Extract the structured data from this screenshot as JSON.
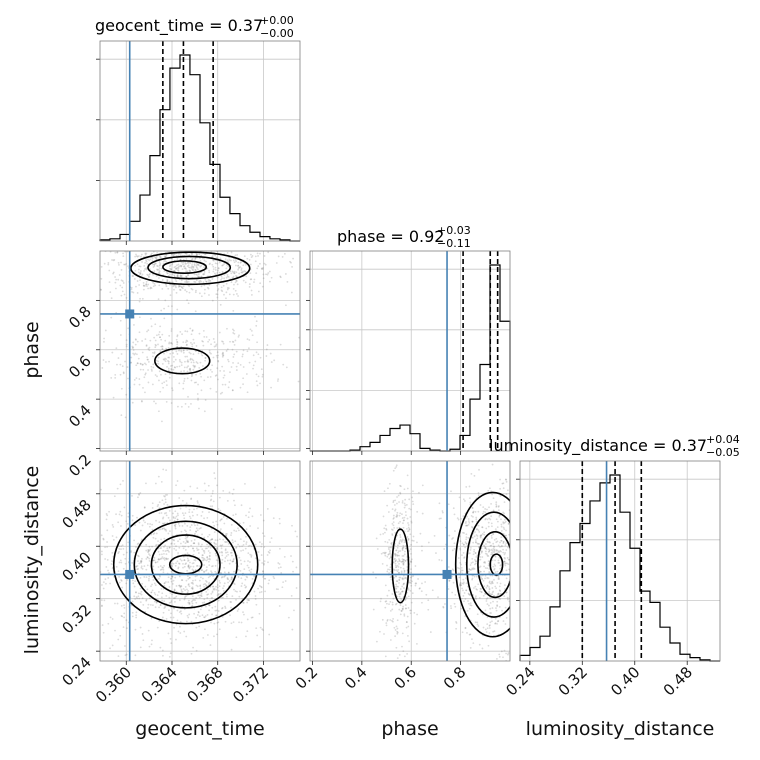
{
  "chart_data": {
    "type": "corner",
    "parameters": [
      "geocent_time",
      "phase",
      "luminosity_distance"
    ],
    "truths": {
      "geocent_time": 0.3603,
      "phase": 0.745,
      "luminosity_distance": 0.357
    },
    "titles": [
      {
        "text": "geocent_time = 0.37",
        "sup": "+0.00",
        "sub": "−0.00"
      },
      {
        "text": "phase = 0.92",
        "sup": "+0.03",
        "sub": "−0.11"
      },
      {
        "text": "luminosity_distance = 0.37",
        "sup": "+0.04",
        "sub": "−0.05"
      }
    ],
    "ranges": {
      "geocent_time": [
        0.3577,
        0.3752
      ],
      "phase": [
        0.19,
        1.0
      ],
      "luminosity_distance": [
        0.225,
        0.53
      ]
    },
    "ticks": {
      "geocent_time": {
        "values": [
          0.36,
          0.364,
          0.368,
          0.372
        ],
        "labels": [
          "0.360",
          "0.364",
          "0.368",
          "0.372"
        ]
      },
      "phase": {
        "values": [
          0.2,
          0.4,
          0.6,
          0.8
        ],
        "labels": [
          "0.2",
          "0.4",
          "0.6",
          "0.8"
        ]
      },
      "luminosity_distance": {
        "values": [
          0.24,
          0.32,
          0.4,
          0.48
        ],
        "labels": [
          "0.24",
          "0.32",
          "0.40",
          "0.48"
        ]
      }
    },
    "quantiles": {
      "geocent_time": [
        0.3632,
        0.365,
        0.3676
      ],
      "phase": [
        0.81,
        0.92,
        0.95
      ],
      "luminosity_distance": [
        0.32,
        0.37,
        0.41
      ]
    },
    "histograms": {
      "geocent_time": {
        "edges": [
          0.3577,
          0.35857,
          0.35945,
          0.36032,
          0.3612,
          0.36207,
          0.36295,
          0.36382,
          0.3647,
          0.36557,
          0.36645,
          0.36732,
          0.3682,
          0.36907,
          0.36995,
          0.37082,
          0.3717,
          0.37257,
          0.37345,
          0.37432,
          0.3752
        ],
        "counts": [
          1,
          2,
          6,
          18,
          42,
          78,
          120,
          158,
          170,
          152,
          108,
          70,
          40,
          25,
          14,
          8,
          4,
          2,
          1,
          0
        ]
      },
      "phase": {
        "edges": [
          0.19,
          0.2305,
          0.271,
          0.3115,
          0.352,
          0.3925,
          0.433,
          0.4735,
          0.514,
          0.5545,
          0.595,
          0.6355,
          0.676,
          0.7165,
          0.757,
          0.7975,
          0.838,
          0.8785,
          0.919,
          0.9595,
          1.0
        ],
        "counts": [
          0,
          0,
          0,
          0,
          1,
          5,
          10,
          18,
          26,
          30,
          20,
          3,
          1,
          0,
          2,
          18,
          60,
          100,
          215,
          150
        ]
      },
      "luminosity_distance": {
        "edges": [
          0.225,
          0.24025,
          0.2555,
          0.27075,
          0.286,
          0.30125,
          0.3165,
          0.33175,
          0.347,
          0.36225,
          0.3775,
          0.39275,
          0.408,
          0.42325,
          0.4385,
          0.45375,
          0.469,
          0.48425,
          0.4995,
          0.51475,
          0.53
        ],
        "counts": [
          5,
          12,
          22,
          48,
          80,
          105,
          122,
          142,
          158,
          165,
          132,
          100,
          62,
          52,
          30,
          16,
          6,
          3,
          1,
          0
        ]
      }
    },
    "contours": {
      "geocent_time|phase": [
        {
          "level": "2sigma",
          "cx": 0.3656,
          "cy": 0.93,
          "rx": 0.0052,
          "ry": 0.065
        },
        {
          "level": "1.5sigma",
          "cx": 0.3655,
          "cy": 0.933,
          "rx": 0.0036,
          "ry": 0.045
        },
        {
          "level": "1sigma",
          "cx": 0.3651,
          "cy": 0.935,
          "rx": 0.0019,
          "ry": 0.025
        },
        {
          "level": "2sigma",
          "cx": 0.3649,
          "cy": 0.555,
          "rx": 0.0024,
          "ry": 0.052
        }
      ],
      "geocent_time|luminosity_distance": [
        {
          "level": "2sigma",
          "cx": 0.3652,
          "cy": 0.372,
          "rx": 0.0063,
          "ry": 0.09
        },
        {
          "level": "1.5sigma",
          "cx": 0.3652,
          "cy": 0.372,
          "rx": 0.0045,
          "ry": 0.066
        },
        {
          "level": "1sigma",
          "cx": 0.3652,
          "cy": 0.372,
          "rx": 0.003,
          "ry": 0.045
        },
        {
          "level": "0.5sigma",
          "cx": 0.3652,
          "cy": 0.372,
          "rx": 0.0014,
          "ry": 0.014
        }
      ],
      "phase|luminosity_distance": [
        {
          "level": "2sigma",
          "cx": 0.556,
          "cy": 0.37,
          "rx": 0.033,
          "ry": 0.056
        },
        {
          "level": "2sigma",
          "cx": 0.93,
          "cy": 0.372,
          "rx": 0.15,
          "ry": 0.11
        },
        {
          "level": "1.5sigma",
          "cx": 0.935,
          "cy": 0.372,
          "rx": 0.11,
          "ry": 0.08
        },
        {
          "level": "1sigma",
          "cx": 0.94,
          "cy": 0.372,
          "rx": 0.07,
          "ry": 0.05
        },
        {
          "level": "0.5sigma",
          "cx": 0.945,
          "cy": 0.372,
          "rx": 0.025,
          "ry": 0.016
        }
      ]
    },
    "scatter_clouds": {
      "geocent_time|phase": [
        {
          "cx": 0.3652,
          "cy": 0.93,
          "sx": 0.003,
          "sy": 0.045,
          "n": 900
        },
        {
          "cx": 0.3649,
          "cy": 0.555,
          "sx": 0.003,
          "sy": 0.06,
          "n": 500
        }
      ],
      "geocent_time|luminosity_distance": [
        {
          "cx": 0.3652,
          "cy": 0.372,
          "sx": 0.003,
          "sy": 0.045,
          "n": 1400
        }
      ],
      "phase|luminosity_distance": [
        {
          "cx": 0.555,
          "cy": 0.37,
          "sx": 0.03,
          "sy": 0.045,
          "n": 450
        },
        {
          "cx": 0.92,
          "cy": 0.372,
          "sx": 0.07,
          "sy": 0.045,
          "n": 900
        }
      ]
    },
    "grid": true,
    "colors": {
      "truth": "#4682b4",
      "hist": "#000000",
      "points": "#7f7f7f"
    }
  }
}
